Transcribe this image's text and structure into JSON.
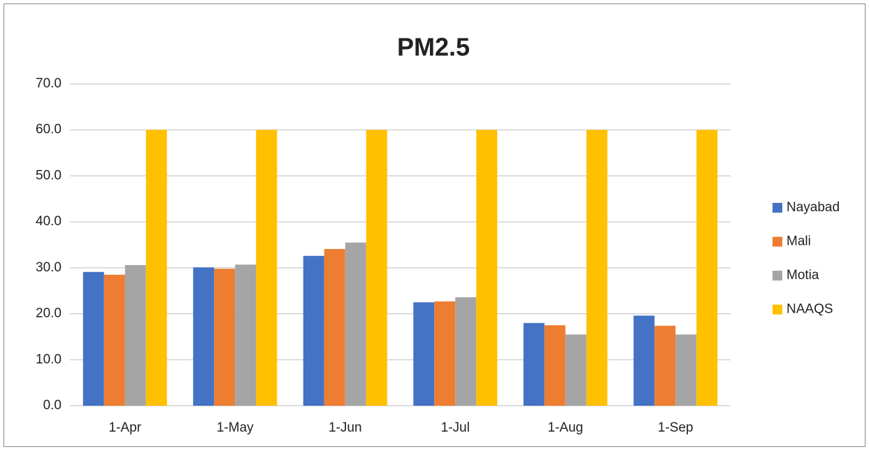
{
  "chart_data": {
    "type": "bar",
    "title": "PM2.5",
    "categories": [
      "1-Apr",
      "1-May",
      "1-Jun",
      "1-Jul",
      "1-Aug",
      "1-Sep"
    ],
    "series": [
      {
        "name": "Nayabad",
        "color": "#4472c4",
        "values": [
          29.1,
          30.1,
          32.6,
          22.5,
          18.0,
          19.6
        ]
      },
      {
        "name": "Mali",
        "color": "#ed7d31",
        "values": [
          28.5,
          29.8,
          34.1,
          22.7,
          17.5,
          17.4
        ]
      },
      {
        "name": "Motia",
        "color": "#a5a5a5",
        "values": [
          30.6,
          30.7,
          35.5,
          23.6,
          15.5,
          15.5
        ]
      },
      {
        "name": "NAAQS",
        "color": "#ffc000",
        "values": [
          60,
          60,
          60,
          60,
          60,
          60
        ]
      }
    ],
    "ylim": [
      0,
      70
    ],
    "yticks": [
      {
        "value": 0,
        "label": "0.0"
      },
      {
        "value": 10,
        "label": "10.0"
      },
      {
        "value": 20,
        "label": "20.0"
      },
      {
        "value": 30,
        "label": "30.0"
      },
      {
        "value": 40,
        "label": "40.0"
      },
      {
        "value": 50,
        "label": "50.0"
      },
      {
        "value": 60,
        "label": "60.0"
      },
      {
        "value": 70,
        "label": "70.0"
      }
    ],
    "grid": true,
    "legend": "right"
  }
}
